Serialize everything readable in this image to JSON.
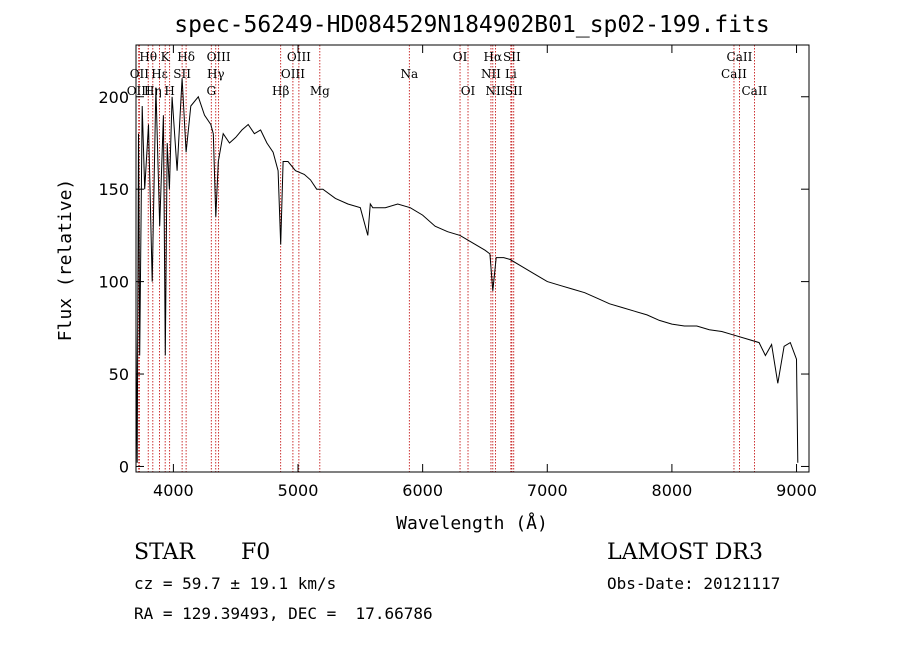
{
  "chart_data": {
    "type": "line",
    "title": "spec-56249-HD084529N184902B01_sp02-199.fits",
    "xlabel": "Wavelength (Å)",
    "ylabel": "Flux (relative)",
    "xlim": [
      3700,
      9100
    ],
    "ylim": [
      -3,
      228
    ],
    "x_ticks": [
      4000,
      5000,
      6000,
      7000,
      8000,
      9000
    ],
    "y_ticks": [
      0,
      50,
      100,
      150,
      200
    ],
    "grid": false,
    "series": [
      {
        "name": "spectrum",
        "x": [
          3700,
          3710,
          3720,
          3730,
          3750,
          3770,
          3800,
          3830,
          3860,
          3890,
          3920,
          3935,
          3950,
          3968,
          3990,
          4030,
          4070,
          4102,
          4140,
          4200,
          4250,
          4300,
          4320,
          4340,
          4360,
          4400,
          4450,
          4500,
          4550,
          4600,
          4650,
          4700,
          4750,
          4800,
          4840,
          4861,
          4880,
          4920,
          4980,
          5050,
          5100,
          5150,
          5200,
          5300,
          5400,
          5500,
          5560,
          5580,
          5600,
          5700,
          5800,
          5900,
          6000,
          6100,
          6200,
          6300,
          6400,
          6500,
          6540,
          6563,
          6590,
          6650,
          6700,
          6800,
          6900,
          7000,
          7100,
          7200,
          7300,
          7400,
          7500,
          7600,
          7700,
          7800,
          7900,
          8000,
          8100,
          8200,
          8300,
          8400,
          8500,
          8600,
          8700,
          8750,
          8800,
          8850,
          8900,
          8950,
          9000,
          9010
        ],
        "y": [
          75,
          2,
          180,
          60,
          195,
          150,
          185,
          100,
          205,
          130,
          190,
          60,
          175,
          150,
          200,
          160,
          210,
          170,
          195,
          200,
          190,
          185,
          180,
          135,
          165,
          180,
          175,
          178,
          182,
          185,
          180,
          182,
          175,
          170,
          160,
          120,
          165,
          165,
          160,
          158,
          155,
          150,
          150,
          145,
          142,
          140,
          125,
          142,
          140,
          140,
          142,
          140,
          136,
          130,
          127,
          125,
          121,
          117,
          115,
          95,
          113,
          113,
          112,
          108,
          104,
          100,
          98,
          96,
          94,
          91,
          88,
          86,
          84,
          82,
          79,
          77,
          76,
          76,
          74,
          73,
          71,
          69,
          67,
          60,
          66,
          45,
          65,
          67,
          58,
          2
        ]
      }
    ],
    "emission_lines": [
      {
        "label": "Hθ",
        "x": 3798,
        "row": 0
      },
      {
        "label": "OII",
        "x": 3727,
        "row": 1
      },
      {
        "label": "OIII",
        "x": 3722,
        "row": 2
      },
      {
        "label": "Hη",
        "x": 3835,
        "row": 2
      },
      {
        "label": "K",
        "x": 3934,
        "row": 0
      },
      {
        "label": "Hε",
        "x": 3889,
        "row": 1
      },
      {
        "label": "H",
        "x": 3970,
        "row": 2
      },
      {
        "label": "SII",
        "x": 4070,
        "row": 1
      },
      {
        "label": "Hδ",
        "x": 4102,
        "row": 0
      },
      {
        "label": "OIII",
        "x": 4363,
        "row": 0
      },
      {
        "label": "Hγ",
        "x": 4340,
        "row": 1
      },
      {
        "label": "G",
        "x": 4304,
        "row": 2
      },
      {
        "label": "OIII",
        "x": 5007,
        "row": 0
      },
      {
        "label": "OIII",
        "x": 4959,
        "row": 1
      },
      {
        "label": "Hβ",
        "x": 4861,
        "row": 2
      },
      {
        "label": "Mg",
        "x": 5175,
        "row": 2
      },
      {
        "label": "Na",
        "x": 5893,
        "row": 1
      },
      {
        "label": "OI",
        "x": 6300,
        "row": 0
      },
      {
        "label": "OI",
        "x": 6364,
        "row": 2
      },
      {
        "label": "Hα",
        "x": 6563,
        "row": 0
      },
      {
        "label": "NII",
        "x": 6548,
        "row": 1
      },
      {
        "label": "NII",
        "x": 6584,
        "row": 2
      },
      {
        "label": "SII",
        "x": 6716,
        "row": 0
      },
      {
        "label": "Li",
        "x": 6708,
        "row": 1
      },
      {
        "label": "SII",
        "x": 6731,
        "row": 2
      },
      {
        "label": "CaII",
        "x": 8542,
        "row": 0
      },
      {
        "label": "CaII",
        "x": 8498,
        "row": 1
      },
      {
        "label": "CaII",
        "x": 8662,
        "row": 2
      }
    ]
  },
  "info": {
    "object_class": "STAR",
    "subclass": "F0",
    "survey": "LAMOST DR3",
    "cz": "cz = 59.7 ± 19.1 km/s",
    "obs_date": "Obs-Date: 20121117",
    "coords": "RA = 129.39493, DEC =  17.66786"
  },
  "colors": {
    "line_marker": "#c00000",
    "spectrum": "#000000"
  }
}
